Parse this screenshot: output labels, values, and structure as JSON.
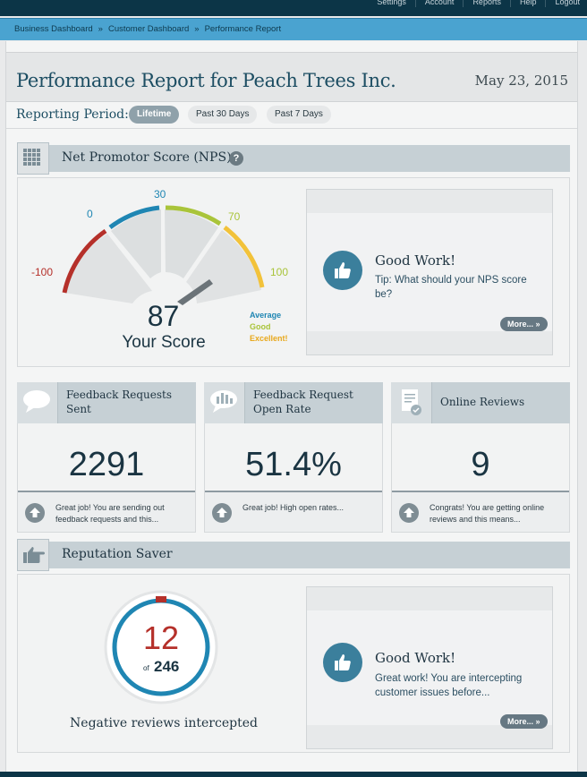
{
  "topnav": {
    "items": [
      "Settings",
      "Account",
      "Reports",
      "Help",
      "Logout"
    ]
  },
  "breadcrumb": {
    "items": [
      "Business Dashboard",
      "Customer Dashboard",
      "Performance Report"
    ],
    "separator": "»"
  },
  "header": {
    "title": "Performance Report for Peach Trees Inc.",
    "date": "May 23, 2015"
  },
  "period": {
    "label": "Reporting Period:",
    "options": [
      "Lifetime",
      "Past 30 Days",
      "Past 7 Days"
    ],
    "selected": "Lifetime"
  },
  "nps": {
    "title": "Net Promotor Score (NPS)",
    "help": "?",
    "gauge_labels": [
      "-100",
      "0",
      "30",
      "70",
      "100"
    ],
    "score": "87",
    "score_label": "Your Score",
    "score_value": 87,
    "legend": [
      "Average",
      "Good",
      "Excellent!"
    ],
    "colors": {
      "red": "#b5302a",
      "blue": "#1f86b3",
      "green": "#a9c43a",
      "yellow": "#f2c23a"
    },
    "tip": {
      "heading": "Good Work!",
      "text": "Tip: What should your NPS score be?",
      "more": "More... »"
    }
  },
  "stats": [
    {
      "label": "Feedback Requests Sent",
      "value": "2291",
      "footer": "Great job! You are sending out feedback requests and this..."
    },
    {
      "label": "Feedback Request Open Rate",
      "value": "51.4%",
      "footer": "Great job! High open rates..."
    },
    {
      "label": "Online Reviews",
      "value": "9",
      "footer": "Congrats! You are getting online reviews and this means..."
    }
  ],
  "reputation": {
    "title": "Reputation Saver",
    "intercepted": "12",
    "of_label": "of",
    "total": "246",
    "caption": "Negative reviews intercepted",
    "tip": {
      "heading": "Good Work!",
      "text": "Great work! You are intercepting customer issues before...",
      "more": "More... »"
    }
  }
}
